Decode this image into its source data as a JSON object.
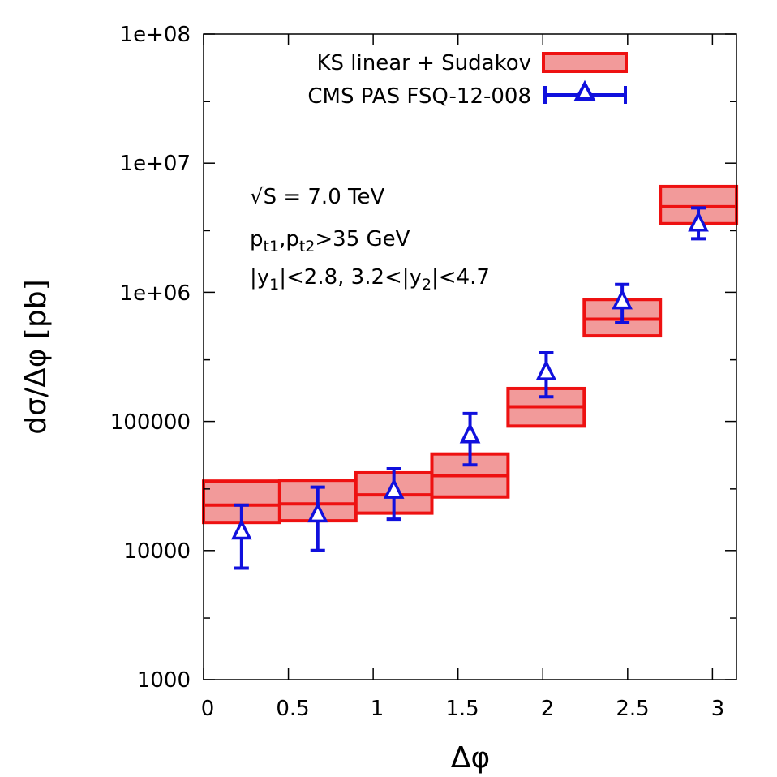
{
  "chart_data": {
    "type": "bar",
    "xlabel": "Δφ",
    "ylabel": "dσ/Δφ [pb]",
    "xlim": [
      0,
      3.1416
    ],
    "ylim": [
      1000,
      100000000
    ],
    "yscale": "log",
    "grid": false,
    "legend_position": "top-right",
    "x_ticks": [
      "0",
      "0.5",
      "1",
      "1.5",
      "2",
      "2.5",
      "3"
    ],
    "y_ticks": [
      "1000",
      "10000",
      "100000",
      "1e+06",
      "1e+07",
      "1e+08"
    ],
    "colors": {
      "theory_line": "#ee1111",
      "theory_fill": "#f29a9a",
      "data": "#1010dd"
    },
    "annotations": [
      "√S = 7.0 TeV",
      "pt1,pt2>35 GeV",
      "|y1|<2.8, 3.2<|y2|<4.7"
    ],
    "series": [
      {
        "name": "KS linear + Sudakov",
        "style": "band",
        "bins": [
          {
            "x_low": 0.0,
            "x_high": 0.449,
            "central": 22500,
            "low": 16500,
            "high": 34500
          },
          {
            "x_low": 0.449,
            "x_high": 0.898,
            "central": 23000,
            "low": 17000,
            "high": 35000
          },
          {
            "x_low": 0.898,
            "x_high": 1.346,
            "central": 27000,
            "low": 19500,
            "high": 40000
          },
          {
            "x_low": 1.346,
            "x_high": 1.795,
            "central": 38000,
            "low": 26000,
            "high": 56000
          },
          {
            "x_low": 1.795,
            "x_high": 2.244,
            "central": 130000,
            "low": 92000,
            "high": 180000
          },
          {
            "x_low": 2.244,
            "x_high": 2.693,
            "central": 620000,
            "low": 460000,
            "high": 880000
          },
          {
            "x_low": 2.693,
            "x_high": 3.142,
            "central": 4600000,
            "low": 3400000,
            "high": 6600000
          }
        ]
      },
      {
        "name": "CMS PAS FSQ-12-008",
        "style": "points",
        "points": [
          {
            "x": 0.224,
            "y": 14000,
            "err_low": 7300,
            "err_high": 22500
          },
          {
            "x": 0.673,
            "y": 19000,
            "err_low": 10000,
            "err_high": 31000
          },
          {
            "x": 1.122,
            "y": 29000,
            "err_low": 17500,
            "err_high": 43000
          },
          {
            "x": 1.571,
            "y": 78000,
            "err_low": 46000,
            "err_high": 115000
          },
          {
            "x": 2.02,
            "y": 240000,
            "err_low": 155000,
            "err_high": 340000
          },
          {
            "x": 2.468,
            "y": 850000,
            "err_low": 580000,
            "err_high": 1150000
          },
          {
            "x": 2.917,
            "y": 3400000,
            "err_low": 2600000,
            "err_high": 4500000
          }
        ]
      }
    ]
  }
}
